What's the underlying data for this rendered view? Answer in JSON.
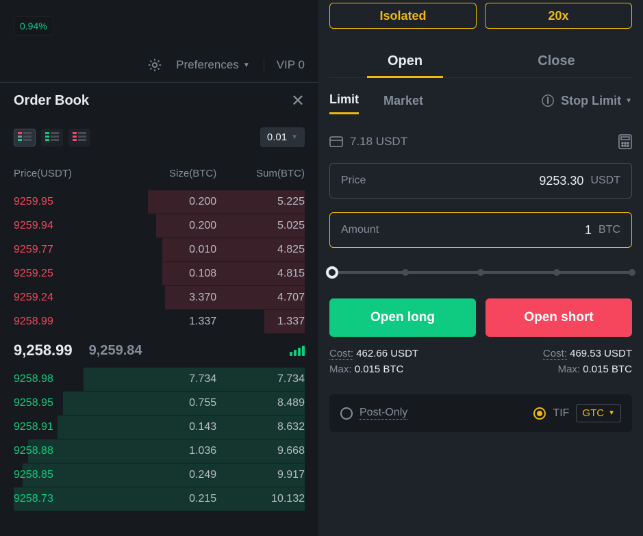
{
  "top": {
    "pct_change": "0.94%",
    "preferences_label": "Preferences",
    "vip_label": "VIP 0"
  },
  "orderbook": {
    "title": "Order Book",
    "precision": "0.01",
    "headers": {
      "price": "Price(USDT)",
      "size": "Size(BTC)",
      "sum": "Sum(BTC)"
    },
    "asks": [
      {
        "price": "9259.95",
        "size": "0.200",
        "sum": "5.225",
        "depth_pct": 54
      },
      {
        "price": "9259.94",
        "size": "0.200",
        "sum": "5.025",
        "depth_pct": 51
      },
      {
        "price": "9259.77",
        "size": "0.010",
        "sum": "4.825",
        "depth_pct": 49
      },
      {
        "price": "9259.25",
        "size": "0.108",
        "sum": "4.815",
        "depth_pct": 49
      },
      {
        "price": "9259.24",
        "size": "3.370",
        "sum": "4.707",
        "depth_pct": 48
      },
      {
        "price": "9258.99",
        "size": "1.337",
        "sum": "1.337",
        "depth_pct": 14
      }
    ],
    "mid": {
      "last": "9,258.99",
      "mark": "9,259.84"
    },
    "bids": [
      {
        "price": "9258.98",
        "size": "7.734",
        "sum": "7.734",
        "depth_pct": 76
      },
      {
        "price": "9258.95",
        "size": "0.755",
        "sum": "8.489",
        "depth_pct": 83
      },
      {
        "price": "9258.91",
        "size": "0.143",
        "sum": "8.632",
        "depth_pct": 85
      },
      {
        "price": "9258.88",
        "size": "1.036",
        "sum": "9.668",
        "depth_pct": 95
      },
      {
        "price": "9258.85",
        "size": "0.249",
        "sum": "9.917",
        "depth_pct": 97
      },
      {
        "price": "9258.73",
        "size": "0.215",
        "sum": "10.132",
        "depth_pct": 100
      }
    ]
  },
  "trade": {
    "margin_mode": "Isolated",
    "leverage": "20x",
    "tabs": {
      "open": "Open",
      "close": "Close"
    },
    "order_types": {
      "limit": "Limit",
      "market": "Market",
      "stop_limit": "Stop Limit"
    },
    "balance": "7.18 USDT",
    "price_field": {
      "label": "Price",
      "value": "9253.30",
      "unit": "USDT"
    },
    "amount_field": {
      "label": "Amount",
      "value": "1",
      "unit": "BTC"
    },
    "actions": {
      "long": "Open long",
      "short": "Open short"
    },
    "long_cost_label": "Cost:",
    "long_cost": "462.66 USDT",
    "long_max_label": "Max:",
    "long_max": "0.015 BTC",
    "short_cost_label": "Cost:",
    "short_cost": "469.53 USDT",
    "short_max_label": "Max:",
    "short_max": "0.015 BTC",
    "post_only_label": "Post-Only",
    "tif_label": "TIF",
    "tif_value": "GTC"
  },
  "colors": {
    "bg": "#0b0e11",
    "panel_left": "#161a1e",
    "panel_right": "#1e2329",
    "border": "#2b3139",
    "text_primary": "#eaecef",
    "text_secondary": "#848e9c",
    "buy": "#0ecb81",
    "sell": "#f6465d",
    "accent": "#f0b90b"
  }
}
